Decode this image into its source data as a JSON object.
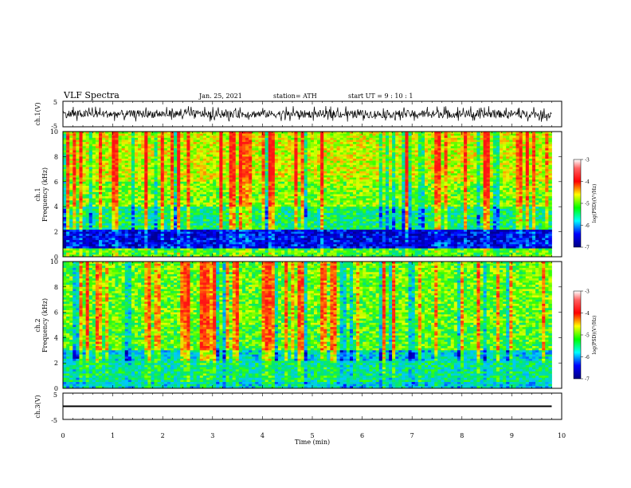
{
  "header": {
    "title": "VLF Spectra",
    "date": "Jan. 25, 2021",
    "station": "station= ATH",
    "start_ut": "start UT =  9 : 10 : 1"
  },
  "chart_data": [
    {
      "type": "line",
      "panel": "ch1-waveform",
      "ylabel": "ch.1(V)",
      "ylim": [
        -5,
        5
      ],
      "yticks": [
        "5",
        "-5"
      ],
      "xlim": [
        0,
        10
      ],
      "series": [
        {
          "x_range": [
            0,
            9.8
          ],
          "y_envelope": [
            -1.5,
            1.5
          ]
        }
      ]
    },
    {
      "type": "heatmap",
      "panel": "ch1-spectrogram",
      "ylabel": "ch.1\nFrequency (kHz)",
      "ylim": [
        0,
        10
      ],
      "yticks": [
        "0",
        "2",
        "4",
        "6",
        "8",
        "10"
      ],
      "x_range": [
        0,
        9.8
      ],
      "colorbar": {
        "label": "log(PSD)(V²/Hz)",
        "range": [
          -7,
          -3
        ],
        "ticks": [
          "-3",
          "-4",
          "-5",
          "-6",
          "-7"
        ]
      }
    },
    {
      "type": "heatmap",
      "panel": "ch2-spectrogram",
      "ylabel": "ch.2\nFrequency (kHz)",
      "ylim": [
        0,
        10
      ],
      "yticks": [
        "0",
        "2",
        "4",
        "6",
        "8",
        "10"
      ],
      "x_range": [
        0,
        9.8
      ],
      "colorbar": {
        "label": "log(PSD)(V²/Hz)",
        "range": [
          -7,
          -3
        ],
        "ticks": [
          "-3",
          "-4",
          "-5",
          "-6",
          "-7"
        ]
      }
    },
    {
      "type": "line",
      "panel": "ch3-waveform",
      "ylabel": "ch.3(V)",
      "ylim": [
        -5,
        5
      ],
      "yticks": [
        "5",
        "-5"
      ],
      "xlim": [
        0,
        10
      ],
      "xlabel": "Time (min)",
      "xticks": [
        "0",
        "1",
        "2",
        "3",
        "4",
        "5",
        "6",
        "7",
        "8",
        "9",
        "10"
      ],
      "series": [
        {
          "x_range": [
            0,
            9.8
          ],
          "y_envelope": [
            -0.3,
            0.3
          ]
        }
      ]
    }
  ]
}
